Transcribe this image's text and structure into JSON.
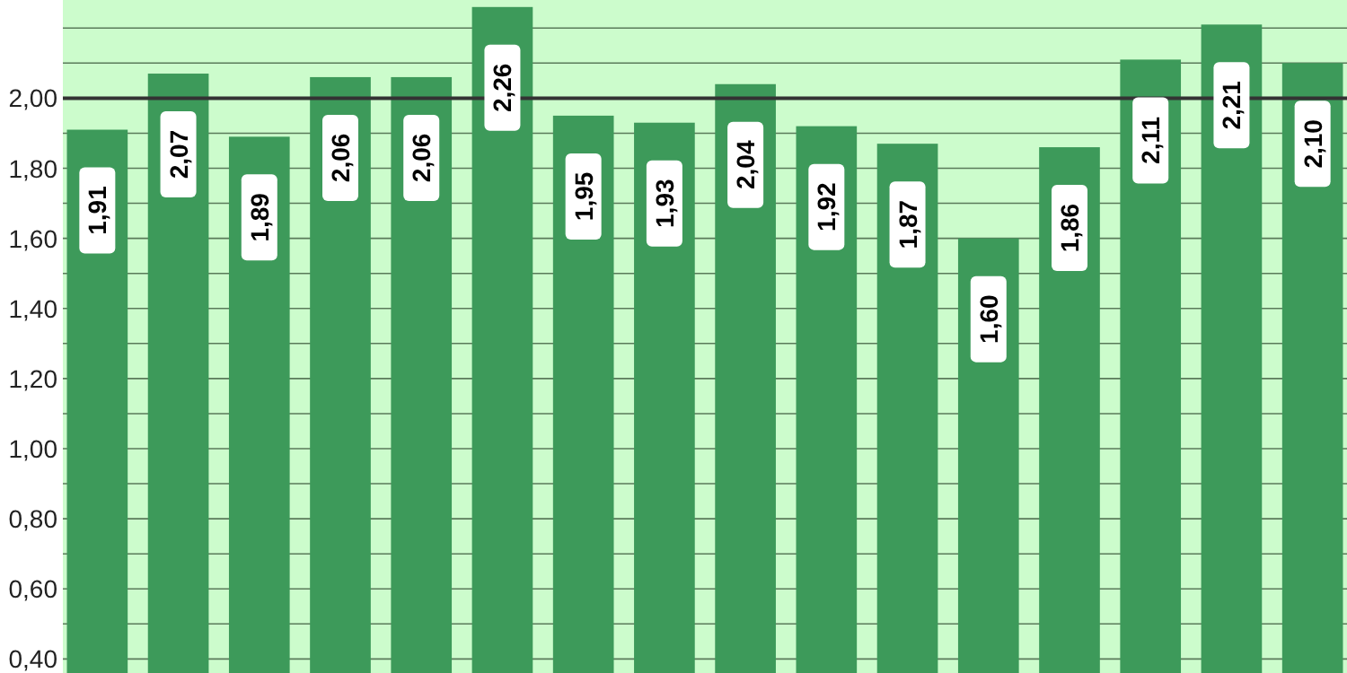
{
  "chart_data": {
    "type": "bar",
    "categories": [
      null,
      null,
      null,
      null,
      null,
      null,
      null,
      null,
      null,
      null,
      null,
      null,
      null,
      null,
      null,
      null
    ],
    "values": [
      1.91,
      2.07,
      1.89,
      2.06,
      2.06,
      2.26,
      1.95,
      1.93,
      2.04,
      1.92,
      1.87,
      1.6,
      1.86,
      2.11,
      2.21,
      2.1
    ],
    "value_labels": [
      "1,91",
      "2,07",
      "1,89",
      "2,06",
      "2,06",
      "2,26",
      "1,95",
      "1,93",
      "2,04",
      "1,92",
      "1,87",
      "1,60",
      "1,86",
      "2,11",
      "2,21",
      "2,10"
    ],
    "color": "#3d9a5a",
    "ylim": [
      0.36,
      2.28
    ],
    "yticks": [
      {
        "value": 0.4,
        "label": "0,40"
      },
      {
        "value": 0.5,
        "label": null
      },
      {
        "value": 0.6,
        "label": "0,60"
      },
      {
        "value": 0.7,
        "label": null
      },
      {
        "value": 0.8,
        "label": "0,80"
      },
      {
        "value": 0.9,
        "label": null
      },
      {
        "value": 1.0,
        "label": "1,00"
      },
      {
        "value": 1.1,
        "label": null
      },
      {
        "value": 1.2,
        "label": "1,20"
      },
      {
        "value": 1.3,
        "label": null
      },
      {
        "value": 1.4,
        "label": "1,40"
      },
      {
        "value": 1.5,
        "label": null
      },
      {
        "value": 1.6,
        "label": "1,60"
      },
      {
        "value": 1.7,
        "label": null
      },
      {
        "value": 1.8,
        "label": "1,80"
      },
      {
        "value": 1.9,
        "label": null
      },
      {
        "value": 2.0,
        "label": "2,00"
      },
      {
        "value": 2.1,
        "label": null
      },
      {
        "value": 2.2,
        "label": null
      }
    ],
    "ref_lines": [
      {
        "axis": "y",
        "value": 2.0,
        "color": "#333333"
      }
    ],
    "grid": "y"
  }
}
